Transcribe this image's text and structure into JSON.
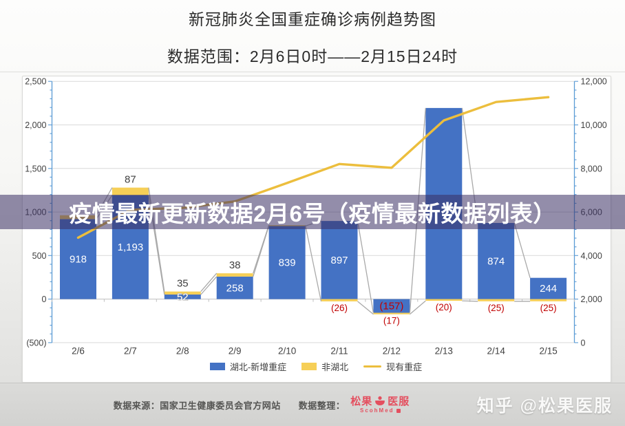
{
  "header": {
    "title": "新冠肺炎全国重症确诊病例趋势图",
    "subtitle": "数据范围：2月6日0时——2月15日24时"
  },
  "overlay_banner": {
    "text": "疫情最新更新数据2月6号（疫情最新数据列表）"
  },
  "chart_data": {
    "type": "combo: stacked bar + line",
    "categories": [
      "2/6",
      "2/7",
      "2/8",
      "2/9",
      "2/10",
      "2/11",
      "2/12",
      "2/13",
      "2/14",
      "2/15"
    ],
    "series": [
      {
        "name": "湖北-新增重症",
        "chart": "bar",
        "stack": "new-severe",
        "axis": "left",
        "color": "#4472C4",
        "values": [
          918,
          1193,
          52,
          258,
          839,
          897,
          -157,
          2194,
          874,
          244
        ],
        "labels": [
          "918",
          "1,193",
          "52",
          "258",
          "839",
          "897",
          "(157)",
          null,
          "874",
          "244"
        ]
      },
      {
        "name": "非湖北",
        "chart": "bar",
        "stack": "new-severe",
        "axis": "left",
        "color": "#F6CF57",
        "values": [
          44,
          87,
          35,
          38,
          10,
          -26,
          -17,
          -20,
          -25,
          -25
        ],
        "labels": [
          null,
          "87",
          "35",
          "38",
          null,
          "(26)",
          "(17)",
          "(20)",
          "(25)",
          "(25)"
        ]
      },
      {
        "name": "现有重症",
        "chart": "line",
        "axis": "right",
        "color": "#ECBE3D",
        "values": [
          4821,
          6101,
          6188,
          6484,
          7333,
          8204,
          8030,
          10204,
          11053,
          11272
        ]
      }
    ],
    "left_axis": {
      "min": -500,
      "max": 2500,
      "major_unit": 500,
      "tick_labels": [
        "2,500",
        "2,000",
        "1,500",
        "1,000",
        "500",
        "0",
        "(500)"
      ],
      "negative_tick_color": "#C00000",
      "axis_color": "#5B9BD5"
    },
    "right_axis": {
      "min": 0,
      "max": 12000,
      "major_unit": 2000,
      "tick_labels": [
        "12,000",
        "10,000",
        "8,000",
        "6,000",
        "4,000",
        "2,000",
        "0"
      ],
      "axis_color": "#5B9BD5"
    },
    "grid": "horizontal",
    "label_colors": {
      "inside_bar": "#FFFFFF",
      "above_bar": "#404040",
      "negative": "#C00000"
    },
    "connector_line_color": "#A9A9A9"
  },
  "legend": {
    "items": [
      {
        "label": "湖北-新增重症",
        "color": "#4472C4",
        "swatch": "square"
      },
      {
        "label": "非湖北",
        "color": "#F6CF57",
        "swatch": "square"
      },
      {
        "label": "现有重症",
        "color": "#ECBE3D",
        "swatch": "line"
      }
    ]
  },
  "footer": {
    "source_label": "数据来源：国家卫生健康委员会官方网站",
    "curation_label": "数据整理：",
    "logo_cn_left": "松果",
    "logo_cn_right": "医服",
    "logo_en": "ScohMed",
    "watermark": "知乎 @松果医服"
  }
}
